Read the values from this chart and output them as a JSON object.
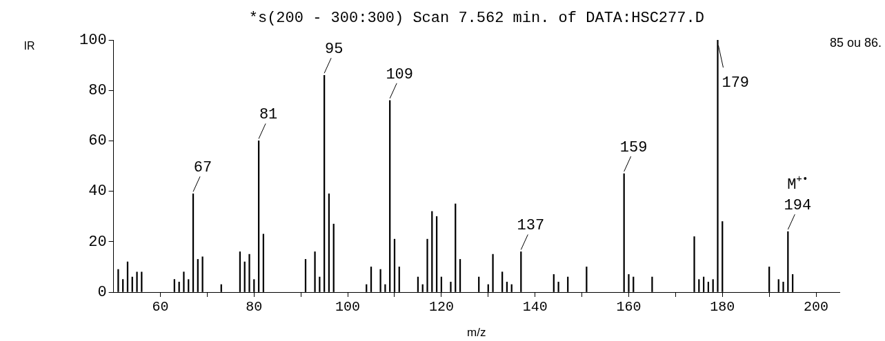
{
  "chart_data": {
    "type": "bar",
    "title": "*s(200 - 300:300) Scan 7.562 min. of DATA:HSC277.D",
    "xlabel": "m/z",
    "ylabel": "IR",
    "x": [
      51,
      52,
      53,
      54,
      55,
      56,
      63,
      64,
      65,
      66,
      67,
      68,
      69,
      73,
      77,
      78,
      79,
      80,
      81,
      82,
      91,
      93,
      94,
      95,
      96,
      97,
      104,
      105,
      107,
      108,
      109,
      110,
      111,
      115,
      116,
      117,
      118,
      119,
      120,
      122,
      123,
      124,
      128,
      130,
      131,
      133,
      134,
      135,
      137,
      144,
      145,
      147,
      151,
      159,
      160,
      161,
      165,
      174,
      175,
      176,
      177,
      178,
      179,
      180,
      190,
      192,
      193,
      194,
      195
    ],
    "values": [
      9,
      5,
      12,
      6,
      8,
      8,
      5,
      4,
      8,
      5,
      39,
      13,
      14,
      3,
      16,
      12,
      15,
      5,
      60,
      23,
      13,
      16,
      6,
      86,
      39,
      27,
      3,
      10,
      9,
      3,
      76,
      21,
      10,
      6,
      3,
      21,
      32,
      30,
      6,
      4,
      35,
      13,
      6,
      3,
      15,
      8,
      4,
      3,
      16,
      7,
      4,
      6,
      10,
      47,
      7,
      6,
      6,
      22,
      5,
      6,
      4,
      5,
      100,
      28,
      10,
      5,
      4,
      24,
      7
    ],
    "color": "#000000",
    "xlim": [
      50,
      205
    ],
    "xticks": [
      60,
      {
        "value": 70,
        "label": null
      },
      80,
      {
        "value": 90,
        "label": null
      },
      100,
      {
        "value": 110,
        "label": null
      },
      120,
      {
        "value": 130,
        "label": null
      },
      140,
      {
        "value": 150,
        "label": null
      },
      160,
      {
        "value": 170,
        "label": null
      },
      180,
      {
        "value": 190,
        "label": null
      },
      200
    ],
    "ylim": [
      0,
      100
    ],
    "yticks": [
      0,
      20,
      40,
      60,
      80,
      100
    ],
    "grid": false,
    "legend": false,
    "annotations": [
      {
        "text": "67",
        "x": 67,
        "y": 39
      },
      {
        "text": "81",
        "x": 81,
        "y": 60
      },
      {
        "text": "95",
        "x": 95,
        "y": 86
      },
      {
        "text": "109",
        "x": 109,
        "y": 76
      },
      {
        "text": "137",
        "x": 137,
        "y": 16
      },
      {
        "text": "159",
        "x": 159,
        "y": 47
      },
      {
        "text": "179",
        "x": 179,
        "y": 100
      },
      {
        "text": "194",
        "x": 194,
        "y": 24
      },
      {
        "text": "M$^{+•}$",
        "x": 194,
        "y": 24
      },
      "85 ou 86."
    ]
  }
}
